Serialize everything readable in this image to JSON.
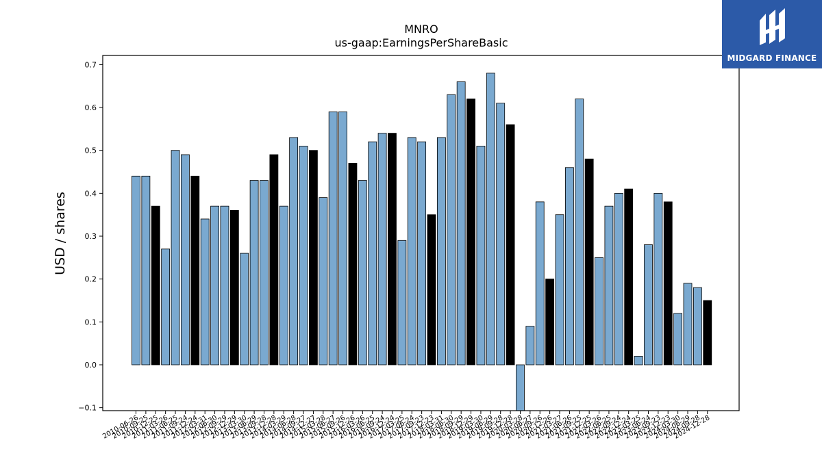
{
  "brand": {
    "name": "MIDGARD FINANCE",
    "bg_color": "#2c5aa8"
  },
  "chart_data": {
    "type": "bar",
    "title": "MNRO",
    "subtitle": "us-gaap:EarningsPerShareBasic",
    "ylabel": "USD / shares",
    "xlabel": "",
    "ylim": [
      -0.11,
      0.72
    ],
    "yticks": [
      -0.1,
      0.0,
      0.1,
      0.2,
      0.3,
      0.4,
      0.5,
      0.6,
      0.7
    ],
    "grid": false,
    "colors": {
      "quarter": "#7aa9d0",
      "annual": "#000000",
      "edge": "#000000"
    },
    "categories": [
      "2010-06-26",
      "2010-09-25",
      "2010-12-25",
      "2011-03-26",
      "2011-06-25",
      "2011-09-24",
      "2011-12-24",
      "2012-03-31",
      "2012-06-30",
      "2012-09-29",
      "2012-12-29",
      "2013-03-30",
      "2013-06-29",
      "2013-09-28",
      "2013-12-28",
      "2014-03-29",
      "2014-06-28",
      "2014-09-27",
      "2014-12-27",
      "2015-03-28",
      "2015-06-27",
      "2015-09-26",
      "2015-12-26",
      "2016-03-26",
      "2016-06-25",
      "2016-09-24",
      "2016-12-24",
      "2017-03-25",
      "2017-06-24",
      "2017-09-23",
      "2017-12-23",
      "2018-03-31",
      "2018-06-30",
      "2018-09-29",
      "2018-12-29",
      "2019-03-30",
      "2019-06-29",
      "2019-09-28",
      "2019-12-28",
      "2020-03-28",
      "2020-06-27",
      "2020-09-26",
      "2020-12-26",
      "2021-03-27",
      "2021-06-26",
      "2021-09-25",
      "2021-12-25",
      "2022-03-26",
      "2022-06-25",
      "2022-09-24",
      "2022-12-24",
      "2023-03-25",
      "2023-06-24",
      "2023-09-23",
      "2023-12-23",
      "2024-03-30",
      "2024-06-29",
      "2024-09-28",
      "2024-12-28"
    ],
    "tick_labels_shown": [
      "2010-06-26",
      "2010-09-25",
      "2010-12-25",
      "2011-03-26",
      "2011-06-25",
      "2011-09-24",
      "2011-12-24",
      "2012-03-31",
      "2012-06-30",
      "2012-09-29",
      "2012-12-29",
      "2013-03-30",
      "2013-06-29",
      "2013-09-28",
      "2013-12-28",
      "2014-03-29",
      "2014-06-28",
      "2014-09-27",
      "2014-12-27",
      "2015-03-28",
      "2015-06-27",
      "2015-09-26",
      "2015-12-26",
      "2016-03-26",
      "2016-06-25",
      "2016-09-24",
      "2016-12-24",
      "2017-03-25",
      "2017-06-24",
      "2017-09-23",
      "2017-12-23",
      "2018-03-31",
      "2018-06-30",
      "2018-09-29",
      "2018-12-29",
      "2019-03-30",
      "2019-06-29",
      "2019-09-28",
      "2019-12-28",
      "2020-03-28",
      "2020-06-27",
      "2020-09-26",
      "2020-12-26",
      "2021-03-27",
      "2021-06-26",
      "2021-09-25",
      "2021-12-25",
      "2022-03-26",
      "2022-06-25",
      "2022-09-24",
      "2022-12-24",
      "2023-03-25",
      "2023-06-24",
      "2023-09-23",
      "2023-12-23",
      "2024-03-30",
      "2024-06-29",
      "2024-09-28",
      "2024-12-28"
    ],
    "values": [
      0.44,
      0.44,
      0.37,
      0.27,
      0.5,
      0.49,
      0.44,
      0.34,
      0.37,
      0.37,
      0.36,
      0.26,
      0.43,
      0.43,
      0.49,
      0.37,
      0.53,
      0.51,
      0.5,
      0.39,
      0.59,
      0.59,
      0.47,
      0.43,
      0.52,
      0.54,
      0.54,
      0.29,
      0.53,
      0.52,
      0.35,
      0.53,
      0.63,
      0.66,
      0.62,
      0.51,
      0.68,
      0.61,
      0.56,
      -0.11,
      0.09,
      0.38,
      0.2,
      0.35,
      0.46,
      0.62,
      0.48,
      0.25,
      0.37,
      0.4,
      0.41,
      0.02,
      0.28,
      0.4,
      0.38,
      0.12,
      0.19,
      0.18,
      0.15
    ],
    "is_annual": [
      false,
      false,
      true,
      false,
      false,
      false,
      true,
      false,
      false,
      false,
      true,
      false,
      false,
      false,
      true,
      false,
      false,
      false,
      true,
      false,
      false,
      false,
      true,
      false,
      false,
      false,
      true,
      false,
      false,
      false,
      true,
      false,
      false,
      false,
      true,
      false,
      false,
      false,
      true,
      false,
      false,
      false,
      true,
      false,
      false,
      false,
      true,
      false,
      false,
      false,
      true,
      false,
      false,
      false,
      true,
      false,
      false,
      false,
      true
    ]
  }
}
